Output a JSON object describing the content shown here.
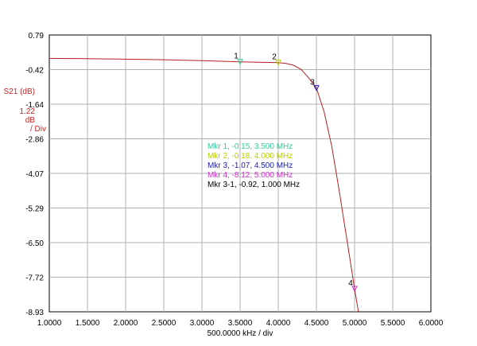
{
  "chart_data": {
    "type": "line",
    "title": "",
    "xlabel": "500.0000 kHz / div",
    "ylabel": "S21 (dB)",
    "scale_label": [
      "1.22",
      "dB",
      "/ Div"
    ],
    "xlim": [
      1.0,
      6.0
    ],
    "ylim": [
      -8.93,
      0.79
    ],
    "x_ticks": [
      "1.0000",
      "1.5000",
      "2.0000",
      "2.5000",
      "3.0000",
      "3.5000",
      "4.0000",
      "4.5000",
      "5.0000",
      "5.5000",
      "6.0000"
    ],
    "y_ticks": [
      "0.79",
      "-0.42",
      "-1.64",
      "-2.86",
      "-4.07",
      "-5.29",
      "-6.50",
      "-7.72",
      "-8.93"
    ],
    "grid": true,
    "series": [
      {
        "color": "#b22222",
        "x": [
          1.0,
          1.5,
          2.0,
          2.5,
          3.0,
          3.5,
          3.8,
          4.0,
          4.1,
          4.2,
          4.3,
          4.4,
          4.5,
          4.6,
          4.7,
          4.8,
          4.9,
          5.0,
          5.05
        ],
        "y": [
          -0.03,
          -0.04,
          -0.06,
          -0.08,
          -0.11,
          -0.15,
          -0.17,
          -0.18,
          -0.21,
          -0.27,
          -0.42,
          -0.72,
          -1.07,
          -1.9,
          -3.1,
          -4.7,
          -6.4,
          -8.12,
          -8.93
        ]
      }
    ],
    "markers": [
      {
        "label": "1",
        "x": 3.5,
        "y": -0.15,
        "color": "#33cc99",
        "text": "Mkr 1, -0.15, 3.500 MHz"
      },
      {
        "label": "2",
        "x": 4.0,
        "y": -0.18,
        "color": "#b8d000",
        "text": "Mkr 2, -0.18, 4.000 MHz"
      },
      {
        "label": "3",
        "x": 4.5,
        "y": -1.07,
        "color": "#1c1cc0",
        "text": "Mkr 3, -1.07, 4.500 MHz"
      },
      {
        "label": "4",
        "x": 5.0,
        "y": -8.12,
        "color": "#cc33cc",
        "text": "Mkr 4, -8.12, 5.000 MHz"
      }
    ],
    "delta_marker": {
      "text": "Mkr 3-1, -0.92, 1.000 MHz",
      "color": "#000000"
    }
  }
}
